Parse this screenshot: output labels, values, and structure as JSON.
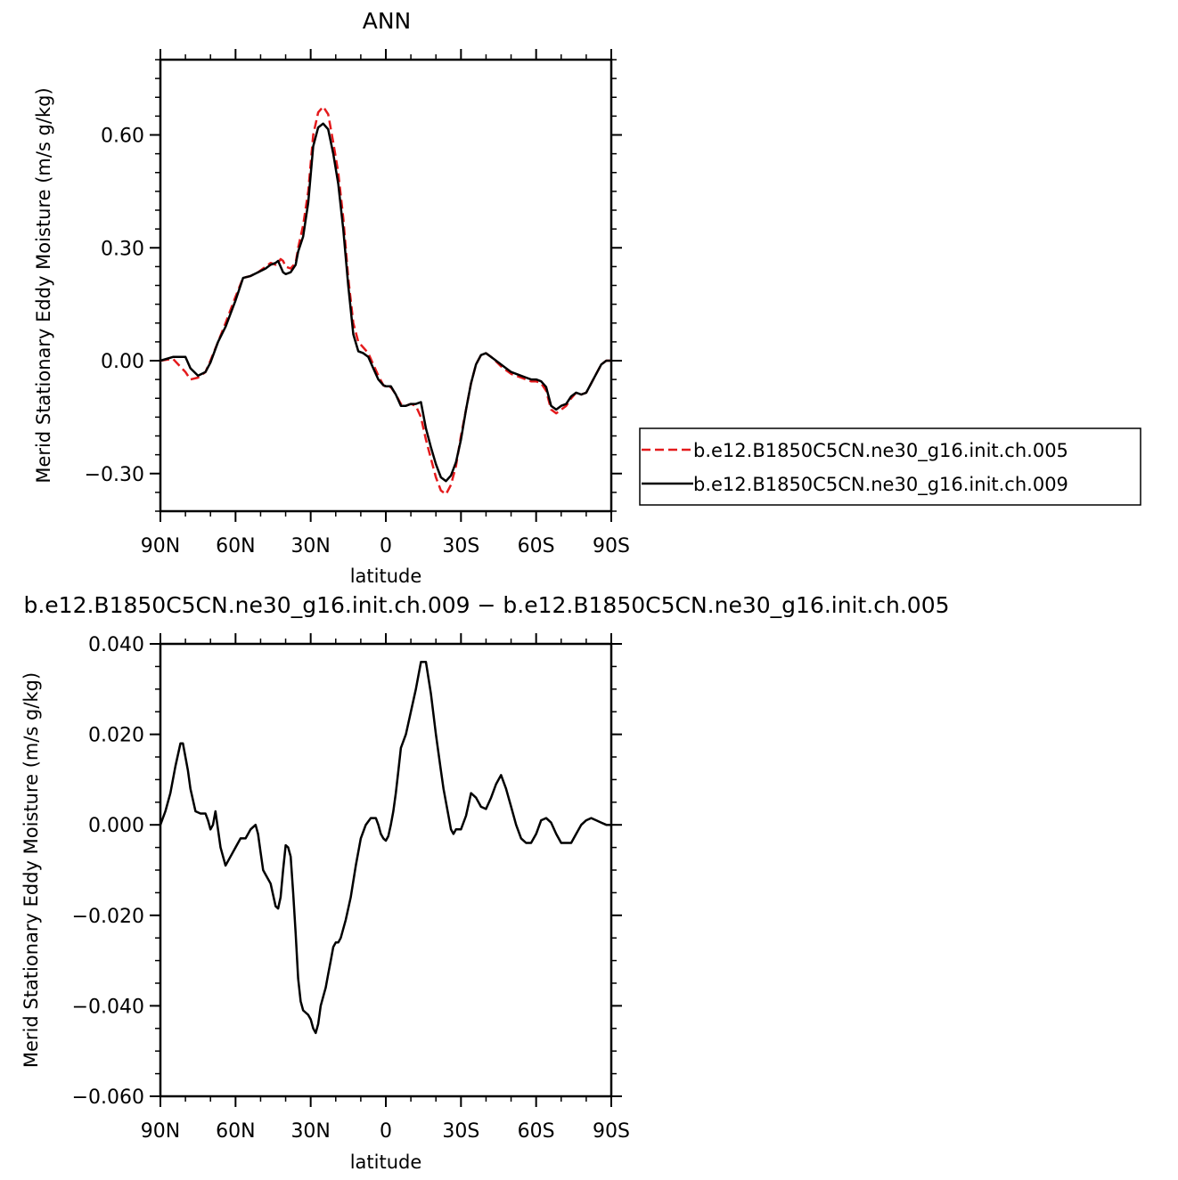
{
  "chart_data": [
    {
      "type": "line",
      "title": "ANN",
      "xlabel": "latitude",
      "ylabel": "Merid Stationary Eddy Moisture (m/s g/kg)",
      "x_range": [
        90,
        -90
      ],
      "ylim": [
        -0.4,
        0.8
      ],
      "x_ticks": [
        {
          "v": 90,
          "label": "90N"
        },
        {
          "v": 60,
          "label": "60N"
        },
        {
          "v": 30,
          "label": "30N"
        },
        {
          "v": 0,
          "label": "0"
        },
        {
          "v": -30,
          "label": "30S"
        },
        {
          "v": -60,
          "label": "60S"
        },
        {
          "v": -90,
          "label": "90S"
        }
      ],
      "y_ticks": [
        {
          "v": 0.6,
          "label": "0.60"
        },
        {
          "v": 0.3,
          "label": "0.30"
        },
        {
          "v": 0.0,
          "label": "0.00"
        },
        {
          "v": -0.3,
          "label": "−0.30"
        }
      ],
      "legend_position": "right",
      "series": [
        {
          "name": "b.e12.B1850C5CN.ne30_g16.init.ch.005",
          "color": "#e41a1c",
          "dash": "dashed",
          "x": [
            90,
            85,
            80,
            78,
            75,
            72,
            70,
            67,
            64,
            60,
            57,
            54,
            51,
            48,
            46,
            44,
            43,
            42,
            41,
            40,
            38,
            36,
            35,
            33,
            31,
            29,
            27,
            25,
            23,
            21,
            19,
            17,
            15,
            13,
            11,
            9,
            7,
            5,
            3,
            1,
            0,
            -2,
            -4,
            -6,
            -8,
            -10,
            -12,
            -14,
            -16,
            -18,
            -20,
            -22,
            -24,
            -26,
            -28,
            -30,
            -32,
            -34,
            -36,
            -38,
            -40,
            -42,
            -44,
            -46,
            -48,
            -50,
            -52,
            -54,
            -56,
            -58,
            -60,
            -62,
            -64,
            -66,
            -68,
            -70,
            -72,
            -74,
            -76,
            -78,
            -80,
            -82,
            -84,
            -86,
            -88,
            -90
          ],
          "y": [
            0.0,
            0.005,
            -0.03,
            -0.05,
            -0.045,
            -0.03,
            0.0,
            0.05,
            0.1,
            0.17,
            0.22,
            0.225,
            0.235,
            0.25,
            0.26,
            0.255,
            0.26,
            0.27,
            0.265,
            0.25,
            0.245,
            0.26,
            0.3,
            0.36,
            0.45,
            0.6,
            0.66,
            0.675,
            0.655,
            0.58,
            0.5,
            0.38,
            0.22,
            0.1,
            0.05,
            0.035,
            0.02,
            -0.01,
            -0.04,
            -0.065,
            -0.07,
            -0.07,
            -0.09,
            -0.115,
            -0.12,
            -0.115,
            -0.12,
            -0.15,
            -0.21,
            -0.26,
            -0.31,
            -0.345,
            -0.355,
            -0.33,
            -0.28,
            -0.2,
            -0.13,
            -0.06,
            -0.01,
            0.015,
            0.02,
            0.01,
            -0.002,
            -0.015,
            -0.025,
            -0.035,
            -0.04,
            -0.045,
            -0.05,
            -0.055,
            -0.055,
            -0.06,
            -0.08,
            -0.13,
            -0.14,
            -0.13,
            -0.12,
            -0.1,
            -0.085,
            -0.09,
            -0.085,
            -0.06,
            -0.035,
            -0.01,
            0.0,
            0.0
          ]
        },
        {
          "name": "b.e12.B1850C5CN.ne30_g16.init.ch.009",
          "color": "#000000",
          "dash": "solid",
          "x": [
            90,
            85,
            80,
            78,
            75,
            72,
            70,
            67,
            64,
            60,
            57,
            54,
            51,
            48,
            46,
            44,
            43,
            42,
            41,
            40,
            38,
            36,
            35,
            33,
            31,
            29,
            27,
            25,
            23,
            21,
            19,
            17,
            15,
            13,
            11,
            9,
            7,
            5,
            3,
            1,
            0,
            -2,
            -4,
            -6,
            -8,
            -10,
            -12,
            -14,
            -16,
            -18,
            -20,
            -22,
            -24,
            -26,
            -28,
            -30,
            -32,
            -34,
            -36,
            -38,
            -40,
            -42,
            -44,
            -46,
            -48,
            -50,
            -52,
            -54,
            -56,
            -58,
            -60,
            -62,
            -64,
            -66,
            -68,
            -70,
            -72,
            -74,
            -76,
            -78,
            -80,
            -82,
            -84,
            -86,
            -88,
            -90
          ],
          "y": [
            0.0,
            0.01,
            0.01,
            -0.02,
            -0.04,
            -0.03,
            -0.005,
            0.05,
            0.09,
            0.16,
            0.22,
            0.225,
            0.235,
            0.245,
            0.255,
            0.26,
            0.265,
            0.25,
            0.235,
            0.23,
            0.235,
            0.255,
            0.29,
            0.33,
            0.42,
            0.57,
            0.62,
            0.63,
            0.615,
            0.55,
            0.47,
            0.35,
            0.2,
            0.07,
            0.025,
            0.02,
            0.01,
            -0.02,
            -0.05,
            -0.065,
            -0.068,
            -0.068,
            -0.09,
            -0.12,
            -0.12,
            -0.115,
            -0.115,
            -0.11,
            -0.18,
            -0.23,
            -0.275,
            -0.31,
            -0.32,
            -0.305,
            -0.27,
            -0.21,
            -0.13,
            -0.06,
            -0.01,
            0.015,
            0.02,
            0.01,
            0.0,
            -0.01,
            -0.02,
            -0.03,
            -0.035,
            -0.04,
            -0.045,
            -0.05,
            -0.05,
            -0.055,
            -0.07,
            -0.12,
            -0.13,
            -0.12,
            -0.115,
            -0.095,
            -0.085,
            -0.09,
            -0.085,
            -0.06,
            -0.035,
            -0.01,
            0.0,
            0.0
          ]
        }
      ]
    },
    {
      "type": "line",
      "title": "b.e12.B1850C5CN.ne30_g16.init.ch.009 − b.e12.B1850C5CN.ne30_g16.init.ch.005",
      "xlabel": "latitude",
      "ylabel": "Merid Stationary Eddy Moisture (m/s g/kg)",
      "x_range": [
        90,
        -90
      ],
      "ylim": [
        -0.06,
        0.04
      ],
      "x_ticks": [
        {
          "v": 90,
          "label": "90N"
        },
        {
          "v": 60,
          "label": "60N"
        },
        {
          "v": 30,
          "label": "30N"
        },
        {
          "v": 0,
          "label": "0"
        },
        {
          "v": -30,
          "label": "30S"
        },
        {
          "v": -60,
          "label": "60S"
        },
        {
          "v": -90,
          "label": "90S"
        }
      ],
      "y_ticks": [
        {
          "v": 0.04,
          "label": "0.040"
        },
        {
          "v": 0.02,
          "label": "0.020"
        },
        {
          "v": 0.0,
          "label": "0.000"
        },
        {
          "v": -0.02,
          "label": "−0.020"
        },
        {
          "v": -0.04,
          "label": "−0.040"
        },
        {
          "v": -0.06,
          "label": "−0.060"
        }
      ],
      "series": [
        {
          "color": "#000000",
          "dash": "solid",
          "x": [
            90,
            88,
            86,
            84,
            82,
            81,
            80,
            79,
            78,
            76,
            74,
            72,
            71,
            70,
            69,
            68,
            66,
            64,
            62,
            60,
            58,
            56,
            55,
            54,
            52,
            51,
            50,
            49,
            48,
            46,
            44,
            43,
            42,
            41,
            40,
            39,
            38,
            37,
            36,
            35,
            34,
            33,
            32,
            31,
            30,
            29,
            28,
            27,
            26,
            25,
            24,
            23,
            22,
            21,
            20,
            19,
            18,
            16,
            14,
            12,
            10,
            8,
            6,
            4,
            3,
            2,
            1,
            0,
            -1,
            -2,
            -3,
            -4,
            -5,
            -6,
            -8,
            -10,
            -12,
            -14,
            -16,
            -18,
            -20,
            -21,
            -22,
            -23,
            -24,
            -25,
            -26,
            -27,
            -28,
            -30,
            -32,
            -34,
            -36,
            -38,
            -40,
            -42,
            -44,
            -46,
            -48,
            -50,
            -52,
            -54,
            -56,
            -58,
            -60,
            -62,
            -64,
            -66,
            -68,
            -70,
            -72,
            -74,
            -76,
            -78,
            -80,
            -82,
            -84,
            -86,
            -88,
            -90
          ],
          "y": [
            0.0,
            0.003,
            0.007,
            0.013,
            0.018,
            0.018,
            0.015,
            0.012,
            0.008,
            0.003,
            0.0025,
            0.0025,
            0.001,
            -0.001,
            0.0,
            0.003,
            -0.005,
            -0.009,
            -0.007,
            -0.005,
            -0.003,
            -0.003,
            -0.002,
            -0.001,
            0.0,
            -0.002,
            -0.006,
            -0.01,
            -0.011,
            -0.013,
            -0.018,
            -0.0185,
            -0.016,
            -0.01,
            -0.0045,
            -0.005,
            -0.007,
            -0.015,
            -0.024,
            -0.034,
            -0.039,
            -0.041,
            -0.0415,
            -0.042,
            -0.043,
            -0.045,
            -0.046,
            -0.044,
            -0.04,
            -0.038,
            -0.036,
            -0.033,
            -0.03,
            -0.027,
            -0.026,
            -0.026,
            -0.025,
            -0.021,
            -0.016,
            -0.009,
            -0.003,
            0.0,
            0.0015,
            0.0015,
            0.0,
            -0.002,
            -0.003,
            -0.0035,
            -0.0025,
            0.0,
            0.003,
            0.007,
            0.012,
            0.017,
            0.02,
            0.025,
            0.03,
            0.036,
            0.036,
            0.029,
            0.02,
            0.016,
            0.012,
            0.008,
            0.005,
            0.002,
            -0.001,
            -0.002,
            -0.001,
            -0.001,
            0.002,
            0.007,
            0.006,
            0.004,
            0.0035,
            0.006,
            0.009,
            0.011,
            0.008,
            0.004,
            0.0,
            -0.003,
            -0.004,
            -0.004,
            -0.002,
            0.001,
            0.0015,
            0.0005,
            -0.002,
            -0.004,
            -0.004,
            -0.004,
            -0.002,
            0.0,
            0.001,
            0.0015,
            0.001,
            0.0005,
            0.0,
            0.0
          ]
        }
      ]
    }
  ]
}
